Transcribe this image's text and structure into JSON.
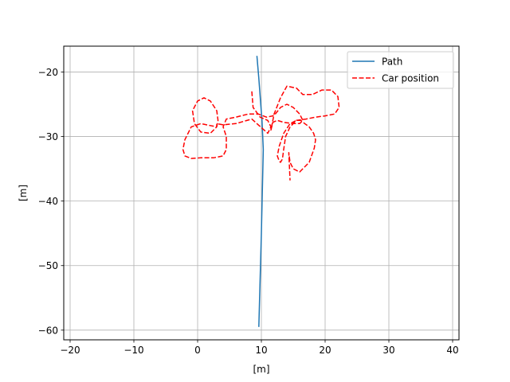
{
  "chart_data": {
    "type": "line",
    "title": "",
    "xlabel": "[m]",
    "ylabel": "[m]",
    "xlim": [
      -21,
      41
    ],
    "ylim": [
      -61.5,
      -16
    ],
    "xticks": [
      -20,
      -10,
      0,
      10,
      20,
      30,
      40
    ],
    "yticks": [
      -20,
      -30,
      -40,
      -50,
      -60
    ],
    "grid": true,
    "legend_position": "top-right",
    "series": [
      {
        "name": "Path",
        "color": "#1f77b4",
        "style": "solid",
        "x": [
          9.3,
          9.6,
          9.9,
          10.1,
          10.3,
          10.0,
          9.6
        ],
        "y": [
          -17.5,
          -21.0,
          -25.0,
          -27.5,
          -32.0,
          -45.0,
          -59.5
        ]
      },
      {
        "name": "Car position",
        "color": "#ff0000",
        "style": "dashed",
        "x": [
          8.5,
          8.7,
          9.8,
          11.0,
          11.5,
          11.0,
          8.5,
          6.0,
          4.0,
          3.0,
          3.0,
          2.0,
          0.5,
          -0.5,
          -0.8,
          0.0,
          1.0,
          2.0,
          3.0,
          3.2,
          3.0,
          2.0,
          0.5,
          -1.0,
          -2.0,
          -2.3,
          -2.0,
          -1.0,
          0.5,
          2.5,
          4.0,
          4.5,
          4.5,
          4.0,
          4.5,
          6.0,
          8.0,
          9.5,
          10.8,
          11.8,
          12.2,
          13.0,
          14.0,
          15.0,
          16.0,
          16.5,
          16.0,
          15.0,
          13.5,
          12.5,
          11.8,
          11.5,
          12.0,
          13.0,
          14.0,
          15.5,
          16.5,
          18.0,
          19.5,
          21.0,
          22.0,
          22.2,
          21.5,
          20.0,
          18.5,
          17.0,
          15.5,
          14.5,
          13.8,
          13.5,
          13.3,
          13.0,
          12.8,
          12.5,
          12.8,
          13.5,
          14.5,
          15.5,
          16.2,
          16.8,
          17.5,
          18.2,
          18.5,
          18.3,
          17.5,
          16.0,
          15.0,
          14.5,
          14.3,
          14.5
        ],
        "y": [
          -23.0,
          -25.5,
          -27.0,
          -27.5,
          -28.5,
          -29.5,
          -27.3,
          -28.0,
          -28.2,
          -28.0,
          -28.5,
          -29.5,
          -29.3,
          -28.0,
          -26.0,
          -24.5,
          -24.0,
          -24.5,
          -26.0,
          -27.5,
          -28.5,
          -28.3,
          -28.0,
          -28.5,
          -30.5,
          -32.0,
          -33.0,
          -33.4,
          -33.3,
          -33.3,
          -33.0,
          -32.0,
          -30.0,
          -28.5,
          -27.3,
          -27.0,
          -26.5,
          -26.5,
          -27.0,
          -26.8,
          -26.5,
          -25.5,
          -25.0,
          -25.5,
          -26.5,
          -27.5,
          -28.0,
          -28.0,
          -27.8,
          -27.5,
          -27.8,
          -29.0,
          -26.5,
          -24.0,
          -22.2,
          -22.5,
          -23.5,
          -23.5,
          -22.8,
          -22.8,
          -23.8,
          -25.5,
          -26.5,
          -26.8,
          -27.0,
          -27.3,
          -27.5,
          -28.5,
          -30.0,
          -32.0,
          -33.5,
          -34.0,
          -33.8,
          -33.0,
          -31.5,
          -29.5,
          -28.0,
          -27.5,
          -27.5,
          -28.0,
          -28.5,
          -29.5,
          -30.5,
          -31.8,
          -34.0,
          -35.5,
          -35.0,
          -34.0,
          -32.5,
          -36.8
        ]
      }
    ]
  }
}
